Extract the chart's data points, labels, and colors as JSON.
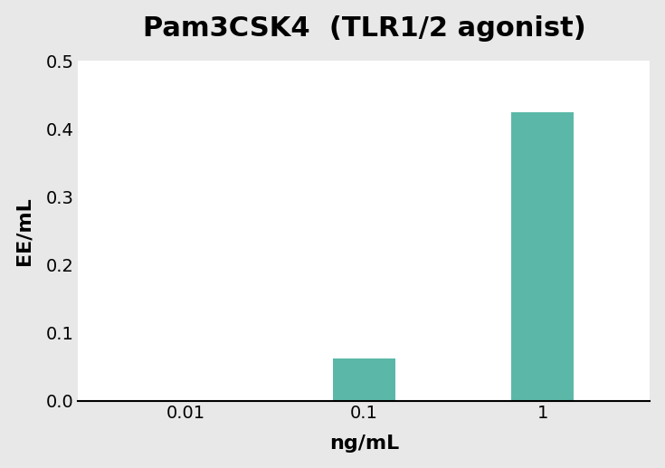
{
  "title": "Pam3CSK4  (TLR1/2 agonist)",
  "xlabel": "ng/mL",
  "ylabel": "EE/mL",
  "categories": [
    "0.01",
    "0.1",
    "1"
  ],
  "x_positions": [
    0,
    1,
    2
  ],
  "values": [
    0.0,
    0.062,
    0.425
  ],
  "bar_color": "#5BB8A8",
  "bar_width": 0.35,
  "ylim": [
    0,
    0.5
  ],
  "yticks": [
    0.0,
    0.1,
    0.2,
    0.3,
    0.4,
    0.5
  ],
  "background_color": "#ffffff",
  "outer_background": "#e8e8e8",
  "title_fontsize": 22,
  "axis_label_fontsize": 16,
  "tick_fontsize": 14
}
